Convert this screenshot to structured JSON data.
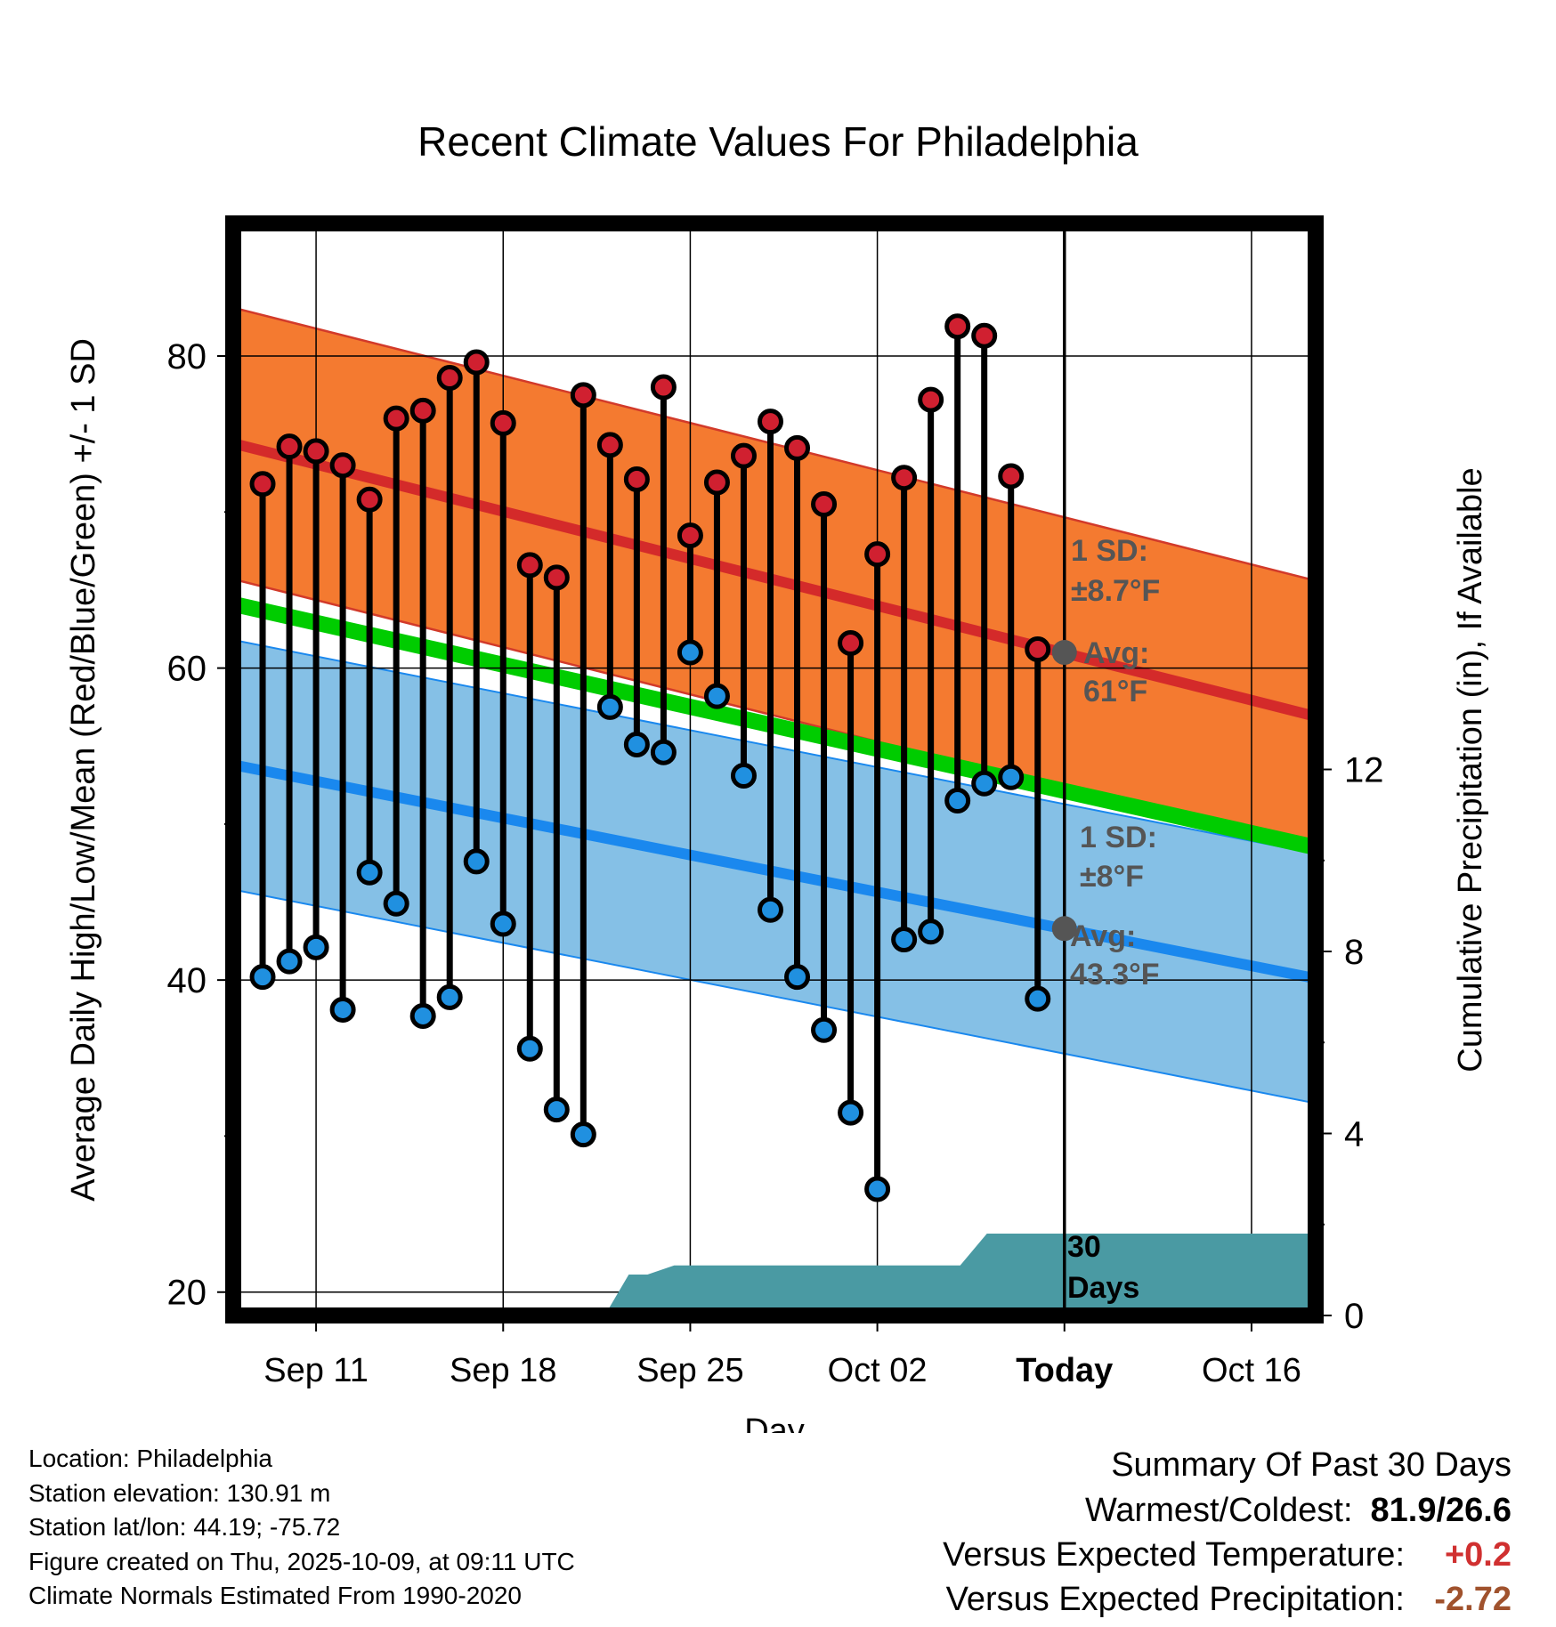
{
  "chart_data": {
    "type": "line",
    "title": "Recent Climate Values For Philadelphia",
    "xlabel": "Day",
    "ylabel_left": "Average Daily High/Low/Mean (Red/Blue/Green) +/- 1 SD",
    "ylabel_right": "Cumulative Precipitation (in), If Available",
    "ylim": [
      18.5,
      88.5
    ],
    "y2lim": [
      0,
      24
    ],
    "yticks_left": [
      "20",
      "40",
      "60",
      "80"
    ],
    "yticks_right": [
      "0",
      "4",
      "8",
      "12"
    ],
    "xlim": [
      -3.1,
      37.4
    ],
    "xticks": [
      {
        "day": 0,
        "label": "Sep 11"
      },
      {
        "day": 7,
        "label": "Sep 18"
      },
      {
        "day": 14,
        "label": "Sep 25"
      },
      {
        "day": 21,
        "label": "Oct 02"
      },
      {
        "day": 28,
        "label": "Today"
      },
      {
        "day": 35,
        "label": "Oct 16"
      }
    ],
    "grid": true,
    "today_day": 28,
    "normal_high": {
      "start": 74.4,
      "end": 56.9,
      "sd": 8.7
    },
    "normal_low": {
      "start": 53.8,
      "end": 40.1,
      "sd": 8.0
    },
    "normal_mean": {
      "start": 64.1,
      "end": 48.5
    },
    "daily": {
      "days": [
        -2,
        -1,
        0,
        1,
        2,
        3,
        4,
        5,
        6,
        7,
        8,
        9,
        10,
        11,
        12,
        13,
        14,
        15,
        16,
        17,
        18,
        19,
        20,
        21,
        22,
        23,
        24,
        25,
        26,
        27
      ],
      "highs": [
        71.8,
        74.2,
        73.9,
        73.0,
        70.8,
        76.0,
        76.5,
        78.6,
        79.6,
        75.7,
        66.6,
        65.8,
        77.5,
        74.3,
        72.1,
        78.0,
        68.5,
        71.9,
        73.6,
        75.8,
        74.1,
        70.5,
        61.6,
        67.3,
        72.2,
        77.2,
        81.9,
        81.3,
        72.3,
        61.2
      ],
      "lows": [
        40.2,
        41.2,
        42.1,
        38.1,
        46.9,
        44.9,
        37.7,
        38.9,
        47.6,
        43.6,
        35.6,
        31.7,
        30.1,
        57.5,
        55.1,
        54.6,
        61.0,
        58.2,
        53.1,
        44.5,
        40.2,
        36.8,
        31.5,
        26.6,
        42.6,
        43.1,
        51.5,
        52.6,
        53.0,
        38.8
      ]
    },
    "precip": {
      "days": [
        -3.1,
        10.8,
        11.7,
        12.4,
        13.4,
        24.1,
        25.1,
        37.4
      ],
      "values": [
        0,
        0,
        0.9,
        0.9,
        1.1,
        1.1,
        1.8,
        1.8
      ]
    },
    "annotations": {
      "high_sd_label": "1 SD:",
      "high_sd_value": "±8.7°F",
      "high_avg_label": "Avg:",
      "high_avg_value": "61°F",
      "high_avg_temp": 61.0,
      "low_sd_label": "1 SD:",
      "low_sd_value": "±8°F",
      "low_avg_label": "Avg:",
      "low_avg_value": "43.3°F",
      "low_avg_temp": 43.3,
      "days_label": "30",
      "days_label2": "Days"
    },
    "colors": {
      "orange_band": "#f47a30",
      "red_line": "#d42a2a",
      "blue_band": "#85c0e6",
      "blue_line": "#1a88ee",
      "green_line": "#00cc00",
      "precip_fill": "#4a9aa3",
      "high_dot": "#d02030",
      "low_dot": "#2090e0",
      "avg_dot": "#555555",
      "annotation_text": "#555555"
    }
  },
  "footer": {
    "location": "Location: Philadelphia",
    "elevation": "Station elevation: 130.91 m",
    "latlon": "Station lat/lon: 44.19; -75.72",
    "created": "Figure created on Thu, 2025-10-09, at 09:11 UTC",
    "normals": "Climate Normals Estimated From 1990-2020"
  },
  "summary": {
    "title": "Summary Of Past 30 Days",
    "warmest_label": "Warmest/Coldest:",
    "warmest_value": "81.9/26.6",
    "temp_label": "Versus Expected Temperature:",
    "temp_value": "+0.2",
    "temp_color": "#d03030",
    "precip_label": "Versus Expected Precipitation:",
    "precip_value": "-2.72",
    "precip_color": "#a0522d"
  }
}
